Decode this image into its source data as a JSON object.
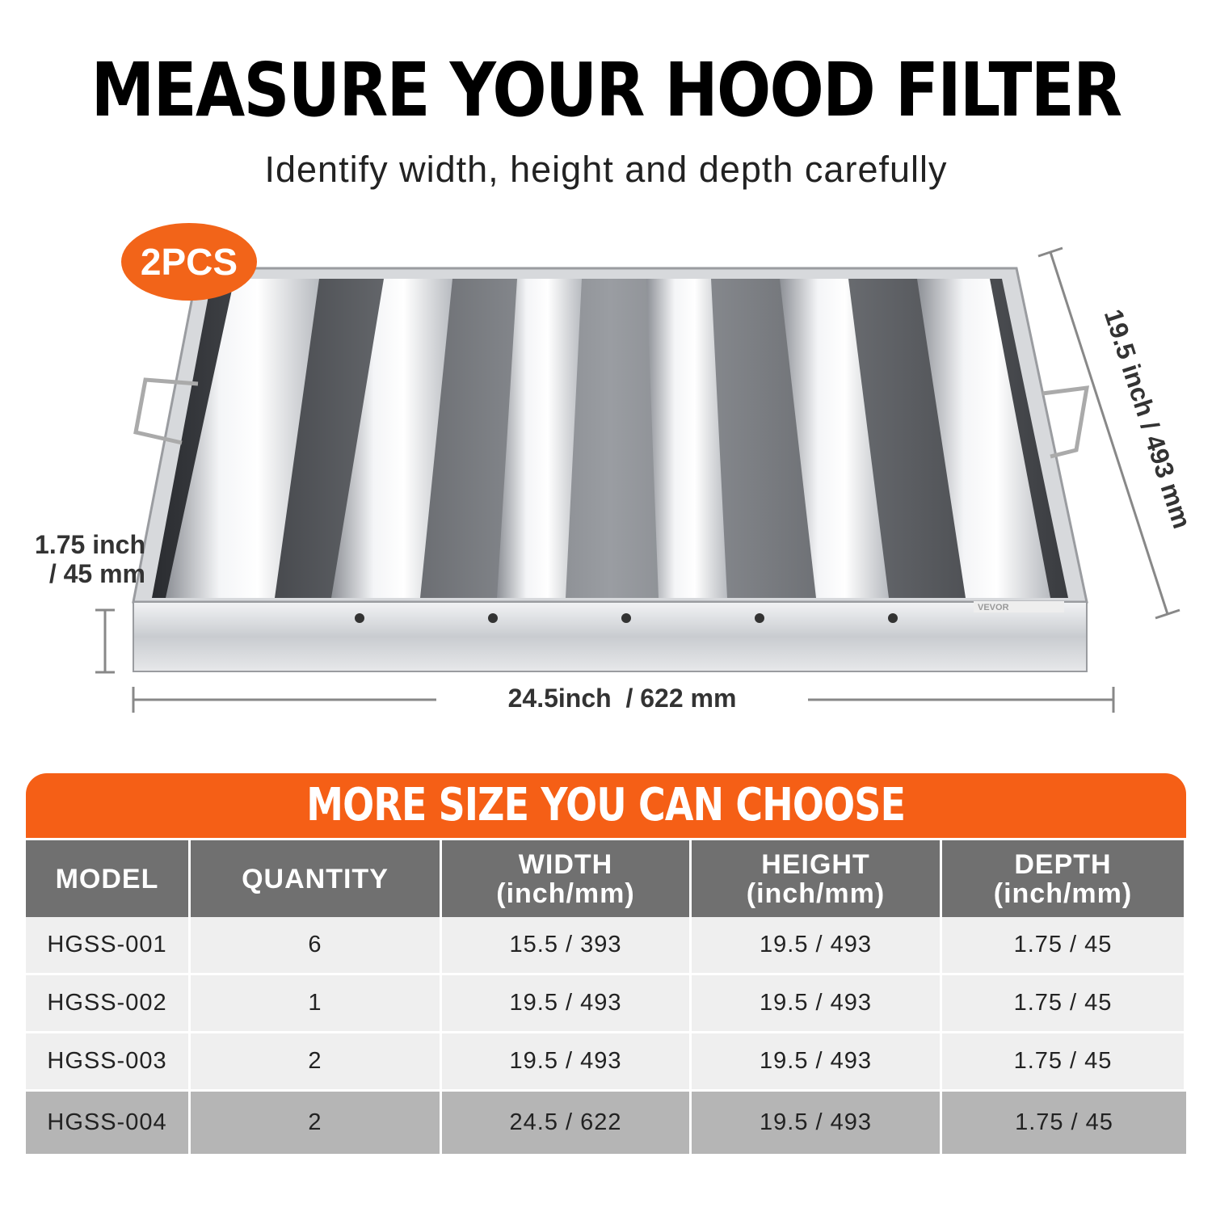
{
  "header": {
    "title": "MEASURE YOUR HOOD FILTER",
    "subtitle": "Identify width, height and depth carefully"
  },
  "product": {
    "badge": "2PCS",
    "brand_label": "VEVOR",
    "dimensions": {
      "depth_line1": "1.75 inch",
      "depth_line2": "/ 45 mm",
      "width": "24.5inch  / 622 mm",
      "height": "19.5 inch / 493 mm"
    }
  },
  "size_table": {
    "title": "MORE SIZE YOU CAN CHOOSE",
    "columns": [
      {
        "line1": "MODEL",
        "line2": ""
      },
      {
        "line1": "QUANTITY",
        "line2": ""
      },
      {
        "line1": "WIDTH",
        "line2": "(inch/mm)"
      },
      {
        "line1": "HEIGHT",
        "line2": "(inch/mm)"
      },
      {
        "line1": "DEPTH",
        "line2": "(inch/mm)"
      }
    ],
    "rows": [
      [
        "HGSS-001",
        "6",
        "15.5 / 393",
        "19.5 / 493",
        "1.75 / 45"
      ],
      [
        "HGSS-002",
        "1",
        "19.5 / 493",
        "19.5 / 493",
        "1.75 / 45"
      ],
      [
        "HGSS-003",
        "2",
        "19.5 / 493",
        "19.5 / 493",
        "1.75 / 45"
      ],
      [
        "HGSS-004",
        "2",
        "24.5 / 622",
        "19.5 / 493",
        "1.75 / 45"
      ]
    ]
  },
  "colors": {
    "accent_orange": "#f55f16",
    "header_gray": "#707070",
    "row_light": "#efefef",
    "row_highlight": "#b5b5b5"
  }
}
